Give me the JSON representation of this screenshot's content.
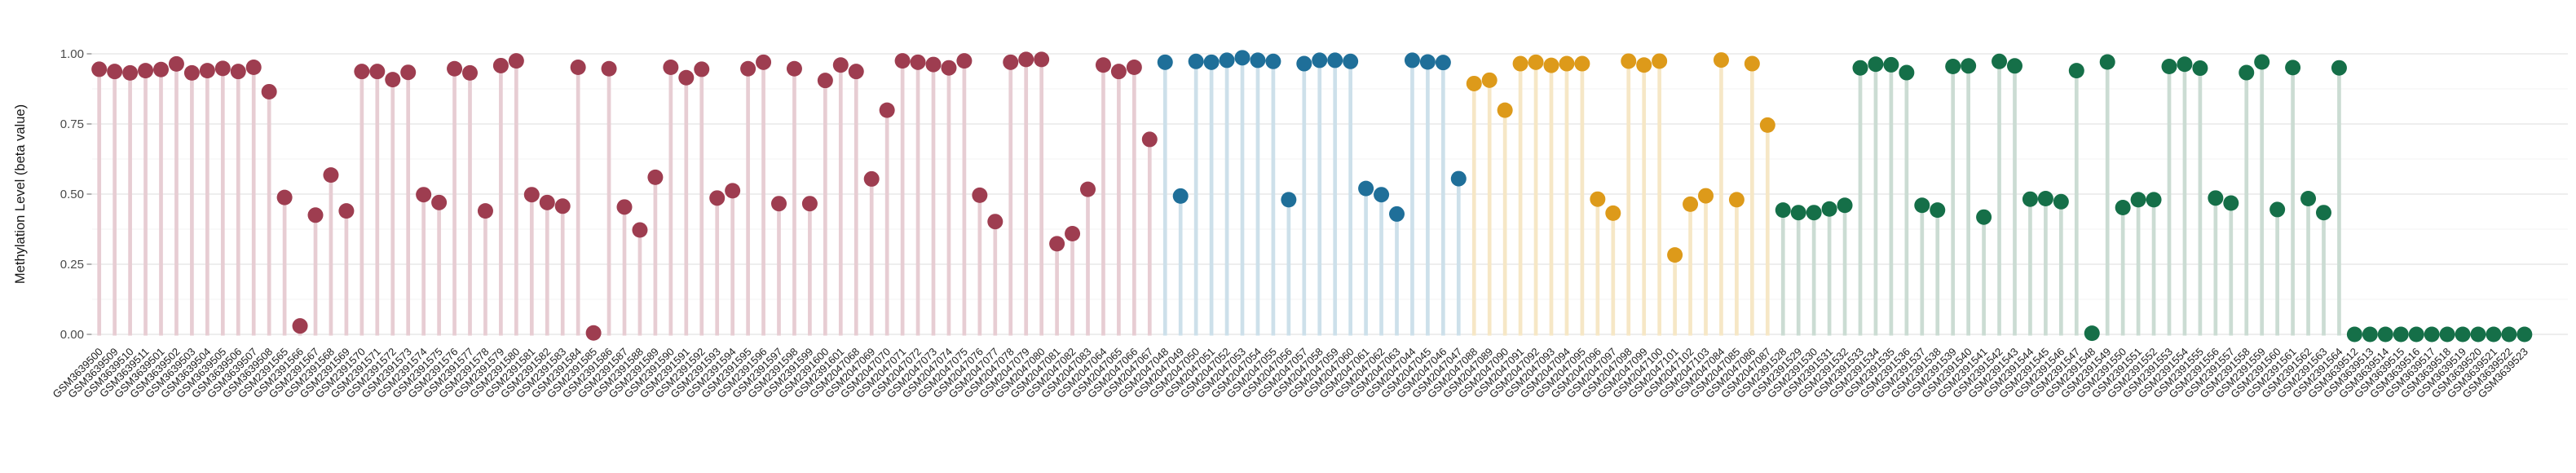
{
  "figure": {
    "title": "",
    "background": "#ffffff"
  },
  "chart_data": {
    "type": "scatter",
    "variant": "lollipop-stem-plot",
    "title": "",
    "xlabel": "",
    "ylabel": "Methylation Level (beta value)",
    "ylim": [
      0,
      1
    ],
    "yticks": [
      0,
      0.25,
      0.5,
      0.75,
      1.0
    ],
    "ytick_labels": [
      "0.00",
      "0.25",
      "0.50",
      "0.75",
      "1.00"
    ],
    "grid": "horizontal major and minor, light gray, no vertical gridlines, no axis lines",
    "legend": "none",
    "x_tick_rotation_deg": 45,
    "series": [
      {
        "name": "group-1-dark-red",
        "color": "#9e3d50",
        "stem_color": "#e7cdd3",
        "samples": [
          {
            "label": "GSM3639500",
            "value": 0.945
          },
          {
            "label": "GSM3639509",
            "value": 0.937
          },
          {
            "label": "GSM3639510",
            "value": 0.932
          },
          {
            "label": "GSM3639511",
            "value": 0.94
          },
          {
            "label": "GSM3639501",
            "value": 0.944
          },
          {
            "label": "GSM3639502",
            "value": 0.964
          },
          {
            "label": "GSM3639503",
            "value": 0.932
          },
          {
            "label": "GSM3639504",
            "value": 0.94
          },
          {
            "label": "GSM3639505",
            "value": 0.948
          },
          {
            "label": "GSM3639506",
            "value": 0.937
          },
          {
            "label": "GSM3639507",
            "value": 0.952
          },
          {
            "label": "GSM3639508",
            "value": 0.865
          },
          {
            "label": "GSM2391565",
            "value": 0.488
          },
          {
            "label": "GSM2391566",
            "value": 0.03
          },
          {
            "label": "GSM2391567",
            "value": 0.425
          },
          {
            "label": "GSM2391568",
            "value": 0.568
          },
          {
            "label": "GSM2391569",
            "value": 0.44
          },
          {
            "label": "GSM2391570",
            "value": 0.937
          },
          {
            "label": "GSM2391571",
            "value": 0.937
          },
          {
            "label": "GSM2391572",
            "value": 0.908
          },
          {
            "label": "GSM2391573",
            "value": 0.934
          },
          {
            "label": "GSM2391574",
            "value": 0.498
          },
          {
            "label": "GSM2391575",
            "value": 0.47
          },
          {
            "label": "GSM2391576",
            "value": 0.947
          },
          {
            "label": "GSM2391577",
            "value": 0.932
          },
          {
            "label": "GSM2391578",
            "value": 0.44
          },
          {
            "label": "GSM2391579",
            "value": 0.958
          },
          {
            "label": "GSM2391580",
            "value": 0.975
          },
          {
            "label": "GSM2391581",
            "value": 0.498
          },
          {
            "label": "GSM2391582",
            "value": 0.47
          },
          {
            "label": "GSM2391583",
            "value": 0.457
          },
          {
            "label": "GSM2391584",
            "value": 0.952
          },
          {
            "label": "GSM2391585",
            "value": 0.005
          },
          {
            "label": "GSM2391586",
            "value": 0.947
          },
          {
            "label": "GSM2391587",
            "value": 0.454
          },
          {
            "label": "GSM2391588",
            "value": 0.372
          },
          {
            "label": "GSM2391589",
            "value": 0.56
          },
          {
            "label": "GSM2391590",
            "value": 0.952
          },
          {
            "label": "GSM2391591",
            "value": 0.915
          },
          {
            "label": "GSM2391592",
            "value": 0.945
          },
          {
            "label": "GSM2391593",
            "value": 0.486
          },
          {
            "label": "GSM2391594",
            "value": 0.512
          },
          {
            "label": "GSM2391595",
            "value": 0.947
          },
          {
            "label": "GSM2391596",
            "value": 0.97
          },
          {
            "label": "GSM2391597",
            "value": 0.466
          },
          {
            "label": "GSM2391598",
            "value": 0.947
          },
          {
            "label": "GSM2391599",
            "value": 0.466
          },
          {
            "label": "GSM2391600",
            "value": 0.905
          },
          {
            "label": "GSM2391601",
            "value": 0.96
          },
          {
            "label": "GSM2047068",
            "value": 0.937
          },
          {
            "label": "GSM2047069",
            "value": 0.554
          },
          {
            "label": "GSM2047070",
            "value": 0.799
          },
          {
            "label": "GSM2047071",
            "value": 0.975
          },
          {
            "label": "GSM2047072",
            "value": 0.97
          },
          {
            "label": "GSM2047073",
            "value": 0.962
          },
          {
            "label": "GSM2047074",
            "value": 0.95
          },
          {
            "label": "GSM2047075",
            "value": 0.975
          },
          {
            "label": "GSM2047076",
            "value": 0.496
          },
          {
            "label": "GSM2047077",
            "value": 0.402
          },
          {
            "label": "GSM2047078",
            "value": 0.97
          },
          {
            "label": "GSM2047079",
            "value": 0.98
          },
          {
            "label": "GSM2047080",
            "value": 0.98
          },
          {
            "label": "GSM2047081",
            "value": 0.323
          },
          {
            "label": "GSM2047082",
            "value": 0.359
          },
          {
            "label": "GSM2047083",
            "value": 0.517
          },
          {
            "label": "GSM2047064",
            "value": 0.96
          },
          {
            "label": "GSM2047065",
            "value": 0.937
          },
          {
            "label": "GSM2047066",
            "value": 0.952
          },
          {
            "label": "GSM2047067",
            "value": 0.695
          }
        ]
      },
      {
        "name": "group-2-blue",
        "color": "#1f6f99",
        "stem_color": "#cde0ea",
        "samples": [
          {
            "label": "GSM2047048",
            "value": 0.97
          },
          {
            "label": "GSM2047049",
            "value": 0.493
          },
          {
            "label": "GSM2047050",
            "value": 0.973
          },
          {
            "label": "GSM2047051",
            "value": 0.97
          },
          {
            "label": "GSM2047052",
            "value": 0.977
          },
          {
            "label": "GSM2047053",
            "value": 0.986
          },
          {
            "label": "GSM2047054",
            "value": 0.977
          },
          {
            "label": "GSM2047055",
            "value": 0.973
          },
          {
            "label": "GSM2047056",
            "value": 0.48
          },
          {
            "label": "GSM2047057",
            "value": 0.965
          },
          {
            "label": "GSM2047058",
            "value": 0.977
          },
          {
            "label": "GSM2047059",
            "value": 0.977
          },
          {
            "label": "GSM2047060",
            "value": 0.973
          },
          {
            "label": "GSM2047061",
            "value": 0.52
          },
          {
            "label": "GSM2047062",
            "value": 0.498
          },
          {
            "label": "GSM2047063",
            "value": 0.429
          },
          {
            "label": "GSM2047044",
            "value": 0.977
          },
          {
            "label": "GSM2047045",
            "value": 0.971
          },
          {
            "label": "GSM2047046",
            "value": 0.969
          },
          {
            "label": "GSM2047047",
            "value": 0.555
          }
        ]
      },
      {
        "name": "group-3-amber",
        "color": "#dd9a1a",
        "stem_color": "#f6e7c6",
        "samples": [
          {
            "label": "GSM2047088",
            "value": 0.894
          },
          {
            "label": "GSM2047089",
            "value": 0.906
          },
          {
            "label": "GSM2047090",
            "value": 0.799
          },
          {
            "label": "GSM2047091",
            "value": 0.965
          },
          {
            "label": "GSM2047092",
            "value": 0.97
          },
          {
            "label": "GSM2047093",
            "value": 0.959
          },
          {
            "label": "GSM2047094",
            "value": 0.965
          },
          {
            "label": "GSM2047095",
            "value": 0.965
          },
          {
            "label": "GSM2047096",
            "value": 0.482
          },
          {
            "label": "GSM2047097",
            "value": 0.432
          },
          {
            "label": "GSM2047098",
            "value": 0.974
          },
          {
            "label": "GSM2047099",
            "value": 0.96
          },
          {
            "label": "GSM2047100",
            "value": 0.974
          },
          {
            "label": "GSM2047101",
            "value": 0.283
          },
          {
            "label": "GSM2047102",
            "value": 0.464
          },
          {
            "label": "GSM2047103",
            "value": 0.494
          },
          {
            "label": "GSM2047084",
            "value": 0.978
          },
          {
            "label": "GSM2047085",
            "value": 0.48
          },
          {
            "label": "GSM2047086",
            "value": 0.965
          },
          {
            "label": "GSM2047087",
            "value": 0.746
          }
        ]
      },
      {
        "name": "group-4-green",
        "color": "#156f48",
        "stem_color": "#cbdcd3",
        "samples": [
          {
            "label": "GSM2391528",
            "value": 0.443
          },
          {
            "label": "GSM2391529",
            "value": 0.434
          },
          {
            "label": "GSM2391530",
            "value": 0.434
          },
          {
            "label": "GSM2391531",
            "value": 0.447
          },
          {
            "label": "GSM2391532",
            "value": 0.46
          },
          {
            "label": "GSM2391533",
            "value": 0.95
          },
          {
            "label": "GSM2391534",
            "value": 0.963
          },
          {
            "label": "GSM2391535",
            "value": 0.961
          },
          {
            "label": "GSM2391536",
            "value": 0.933
          },
          {
            "label": "GSM2391537",
            "value": 0.46
          },
          {
            "label": "GSM2391538",
            "value": 0.443
          },
          {
            "label": "GSM2391539",
            "value": 0.955
          },
          {
            "label": "GSM2391540",
            "value": 0.957
          },
          {
            "label": "GSM2391541",
            "value": 0.418
          },
          {
            "label": "GSM2391542",
            "value": 0.973
          },
          {
            "label": "GSM2391543",
            "value": 0.957
          },
          {
            "label": "GSM2391544",
            "value": 0.482
          },
          {
            "label": "GSM2391545",
            "value": 0.484
          },
          {
            "label": "GSM2391546",
            "value": 0.473
          },
          {
            "label": "GSM2391547",
            "value": 0.94
          },
          {
            "label": "GSM2391548",
            "value": 0.004
          },
          {
            "label": "GSM2391549",
            "value": 0.971
          },
          {
            "label": "GSM2391550",
            "value": 0.452
          },
          {
            "label": "GSM2391551",
            "value": 0.48
          },
          {
            "label": "GSM2391552",
            "value": 0.48
          },
          {
            "label": "GSM2391553",
            "value": 0.955
          },
          {
            "label": "GSM2391554",
            "value": 0.963
          },
          {
            "label": "GSM2391555",
            "value": 0.949
          },
          {
            "label": "GSM2391556",
            "value": 0.486
          },
          {
            "label": "GSM2391557",
            "value": 0.468
          },
          {
            "label": "GSM2391558",
            "value": 0.933
          },
          {
            "label": "GSM2391559",
            "value": 0.971
          },
          {
            "label": "GSM2391560",
            "value": 0.445
          },
          {
            "label": "GSM2391561",
            "value": 0.951
          },
          {
            "label": "GSM2391562",
            "value": 0.484
          },
          {
            "label": "GSM2391563",
            "value": 0.434
          },
          {
            "label": "GSM2391564",
            "value": 0.95
          },
          {
            "label": "GSM3639512",
            "value": 0.0
          },
          {
            "label": "GSM3639513",
            "value": 0.0
          },
          {
            "label": "GSM3639514",
            "value": 0.0
          },
          {
            "label": "GSM3639515",
            "value": 0.0
          },
          {
            "label": "GSM3639516",
            "value": 0.0
          },
          {
            "label": "GSM3639517",
            "value": 0.0
          },
          {
            "label": "GSM3639518",
            "value": 0.0
          },
          {
            "label": "GSM3639519",
            "value": 0.0
          },
          {
            "label": "GSM3639520",
            "value": 0.0
          },
          {
            "label": "GSM3639521",
            "value": 0.0
          },
          {
            "label": "GSM3639522",
            "value": 0.0
          },
          {
            "label": "GSM3639523",
            "value": 0.0
          }
        ]
      }
    ]
  },
  "style": {
    "background": "#ffffff",
    "grid_major_color": "#e8e8e8",
    "grid_minor_color": "#f3f3f3",
    "y_tick_label_color": "#4a4a4a",
    "x_tick_label_color": "#1c1c1c",
    "axis_title_color": "#141414",
    "tick_mark_color": "#8a8a8a"
  }
}
